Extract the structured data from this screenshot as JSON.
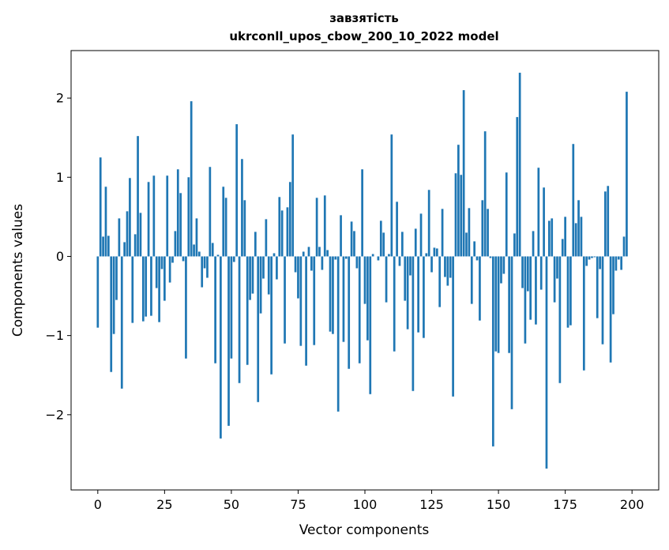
{
  "chart_data": {
    "type": "bar",
    "title": "завзятість",
    "subtitle": "ukrconll_upos_cbow_200_10_2022 model",
    "xlabel": "Vector components",
    "ylabel": "Components values",
    "xlim": [
      -10,
      210
    ],
    "ylim": [
      -2.95,
      2.6
    ],
    "xticks": [
      0,
      25,
      50,
      75,
      100,
      125,
      150,
      175,
      200
    ],
    "yticks": [
      -2,
      -1,
      0,
      1,
      2
    ],
    "ytick_labels": [
      "−2",
      "−1",
      "0",
      "1",
      "2"
    ],
    "bar_color": "#1f77b4",
    "grid": false,
    "values": [
      -0.9,
      1.25,
      0.25,
      0.88,
      0.26,
      -1.46,
      -0.98,
      -0.55,
      0.48,
      -1.67,
      0.18,
      0.57,
      0.99,
      -0.84,
      0.28,
      1.52,
      0.55,
      -0.82,
      -0.76,
      0.94,
      -0.75,
      1.02,
      -0.4,
      -0.83,
      -0.16,
      -0.56,
      1.02,
      -0.33,
      -0.08,
      0.32,
      1.1,
      0.8,
      -0.06,
      -1.29,
      1.0,
      1.96,
      0.15,
      0.48,
      0.06,
      -0.39,
      -0.15,
      -0.27,
      1.13,
      0.17,
      -1.35,
      0.02,
      -2.3,
      0.88,
      0.74,
      -2.14,
      -1.29,
      -0.07,
      1.67,
      -1.6,
      1.23,
      0.71,
      -1.37,
      -0.55,
      -0.47,
      0.31,
      -1.84,
      -0.72,
      -0.28,
      0.47,
      -0.48,
      -1.49,
      0.04,
      -0.29,
      0.75,
      0.58,
      -1.1,
      0.62,
      0.94,
      1.54,
      -0.2,
      -0.53,
      -1.13,
      0.06,
      -1.38,
      0.12,
      -0.18,
      -1.12,
      0.74,
      0.12,
      -0.17,
      0.77,
      0.08,
      -0.95,
      -0.98,
      -0.04,
      -1.96,
      0.52,
      -1.08,
      -0.03,
      -1.42,
      0.44,
      0.32,
      -0.15,
      -1.35,
      1.1,
      -0.6,
      -1.06,
      -1.74,
      0.03,
      0.0,
      -0.05,
      0.45,
      0.3,
      -0.58,
      0.03,
      1.54,
      -1.2,
      0.69,
      -0.12,
      0.31,
      -0.56,
      -0.92,
      -0.24,
      -1.7,
      0.35,
      -0.96,
      0.54,
      -1.03,
      0.04,
      0.84,
      -0.2,
      0.11,
      0.1,
      -0.64,
      0.6,
      -0.26,
      -0.37,
      -0.27,
      -1.77,
      1.05,
      1.41,
      1.03,
      2.1,
      0.3,
      0.61,
      -0.6,
      0.19,
      -0.05,
      -0.81,
      0.71,
      1.58,
      0.6,
      -0.02,
      -2.4,
      -1.2,
      -1.22,
      -0.34,
      -0.22,
      1.06,
      -1.22,
      -1.93,
      0.29,
      1.76,
      2.32,
      -0.4,
      -1.1,
      -0.44,
      -0.8,
      0.32,
      -0.86,
      1.12,
      -0.42,
      0.87,
      -2.68,
      0.45,
      0.48,
      -0.58,
      -0.28,
      -1.6,
      0.22,
      0.5,
      -0.9,
      -0.87,
      1.42,
      0.42,
      0.71,
      0.5,
      -1.44,
      -0.12,
      -0.04,
      -0.02,
      -0.01,
      -0.78,
      -0.16,
      -1.11,
      0.82,
      0.89,
      -1.34,
      -0.73,
      -0.18,
      -0.04,
      -0.17,
      0.25,
      2.08
    ]
  }
}
